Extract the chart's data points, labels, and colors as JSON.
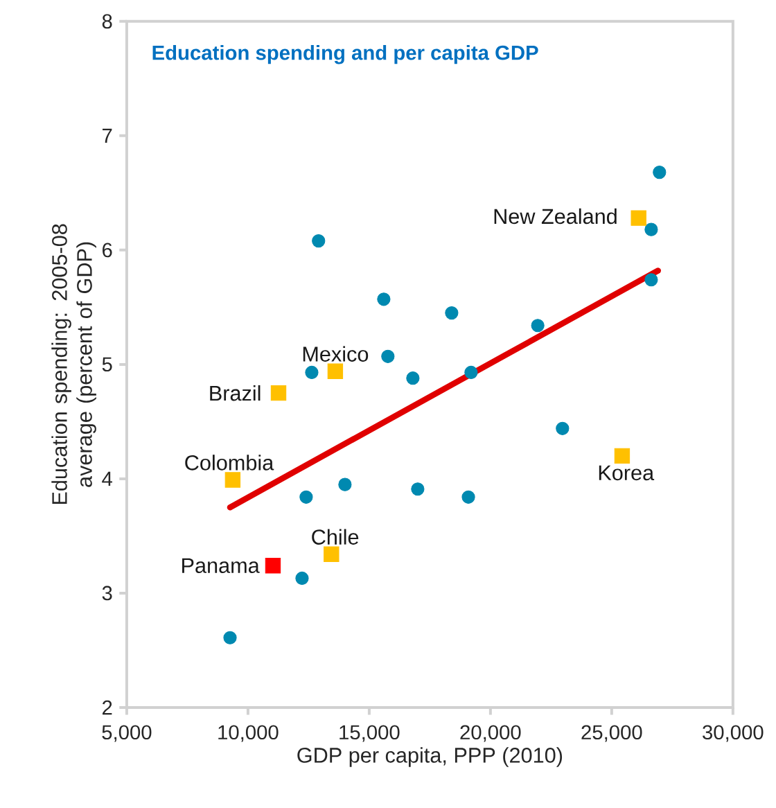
{
  "chart_data": {
    "type": "scatter",
    "title": "Education spending and per capita GDP",
    "xlabel": "GDP per capita, PPP  (2010)",
    "ylabel": "Education spending: 2005-08 average (percent of GDP)",
    "xlim": [
      5000,
      30000
    ],
    "ylim": [
      2,
      8
    ],
    "xticks": [
      {
        "value": 5000,
        "label": "5,000"
      },
      {
        "value": 10000,
        "label": "10,000"
      },
      {
        "value": 15000,
        "label": "15,000"
      },
      {
        "value": 20000,
        "label": "20,000"
      },
      {
        "value": 25000,
        "label": "25,000"
      },
      {
        "value": 30000,
        "label": "30,000"
      }
    ],
    "yticks": [
      2,
      3,
      4,
      5,
      6,
      7,
      8
    ],
    "series": [
      {
        "marker": "circle",
        "color": "#0089b0",
        "x": [
          9260,
          12230,
          12400,
          14000,
          17000,
          19090,
          22970,
          12630,
          16800,
          15770,
          15600,
          12910,
          18400,
          19200,
          21950,
          26630,
          26630,
          26970
        ],
        "values": [
          2.61,
          3.13,
          3.84,
          3.95,
          3.91,
          3.84,
          4.44,
          4.93,
          4.88,
          5.07,
          5.57,
          6.08,
          5.45,
          4.93,
          5.34,
          5.74,
          6.18,
          6.68
        ]
      },
      {
        "marker": "square",
        "color": "#ffc000",
        "x": [
          11260,
          13600,
          9370,
          13440,
          26110,
          25430
        ],
        "values": [
          4.75,
          4.94,
          3.99,
          3.34,
          6.28,
          4.2
        ]
      },
      {
        "marker": "square",
        "color": "#ff0000",
        "x": [
          11030
        ],
        "values": [
          3.24
        ]
      },
      {
        "type": "line",
        "marker": "none",
        "line_style": "solid",
        "color": "#e00000",
        "x": [
          9260,
          26910
        ],
        "values": [
          3.75,
          5.82
        ]
      }
    ],
    "annotations": [
      {
        "text": "New Zealand",
        "x": 26110,
        "y": 6.28
      },
      {
        "text": "Mexico",
        "x": 13600,
        "y": 4.94
      },
      {
        "text": "Brazil",
        "x": 11260,
        "y": 4.75
      },
      {
        "text": "Colombia",
        "x": 9370,
        "y": 3.99
      },
      {
        "text": "Panama",
        "x": 11030,
        "y": 3.24
      },
      {
        "text": "Chile",
        "x": 13440,
        "y": 3.34
      },
      {
        "text": "Korea",
        "x": 25430,
        "y": 4.2
      }
    ]
  }
}
